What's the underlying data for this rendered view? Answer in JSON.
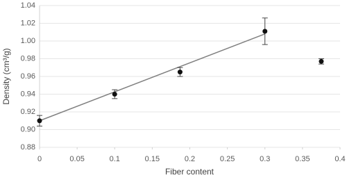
{
  "chart_data": {
    "type": "scatter",
    "x_label": "Fiber content",
    "y_label": "Density (cm³/g)",
    "x": [
      0,
      0.1,
      0.187,
      0.3,
      0.375
    ],
    "values": [
      0.91,
      0.94,
      0.965,
      1.011,
      0.977
    ],
    "errors": [
      0.006,
      0.005,
      0.005,
      0.015,
      0.003
    ],
    "color": "#111111",
    "error_color": "#444444",
    "trendline": {
      "x": [
        0,
        0.3
      ],
      "values": [
        0.91,
        1.008
      ],
      "color": "#808080"
    },
    "xlim": [
      0,
      0.4
    ],
    "xticks": [
      0,
      0.05,
      0.1,
      0.15,
      0.2,
      0.25,
      0.3,
      0.35,
      0.4
    ],
    "ylim": [
      0.88,
      1.04
    ],
    "yticks": [
      0.88,
      {
        "value": 0.9,
        "label": "0.90"
      },
      0.92,
      0.94,
      0.96,
      0.98,
      {
        "value": 1,
        "label": "1.00"
      },
      1.02,
      1.04
    ],
    "grid": true
  }
}
